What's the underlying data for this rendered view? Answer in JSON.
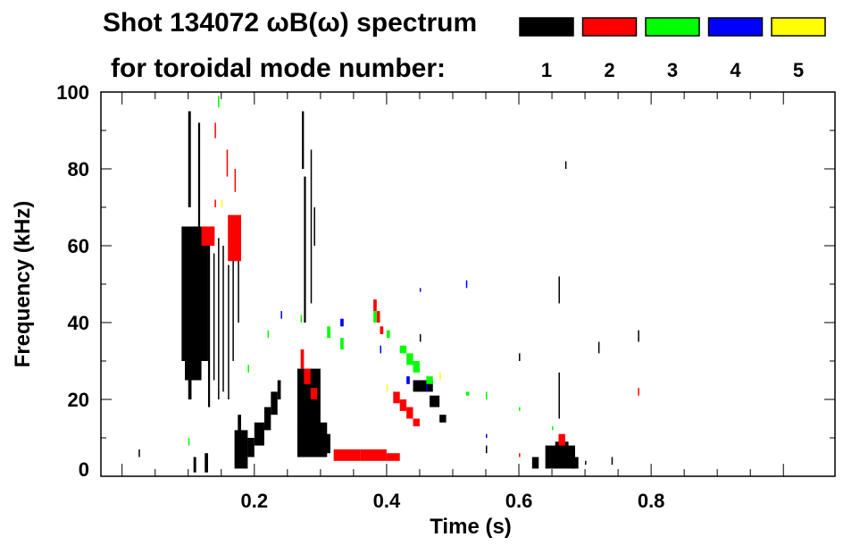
{
  "chart_data": {
    "type": "heatmap",
    "title": "Shot 134072 ωB(ω) spectrum",
    "subtitle": "for toroidal mode number:",
    "xlabel": "Time (s)",
    "ylabel": "Frequency (kHz)",
    "xlim": [
      -0.032,
      1.078
    ],
    "ylim": [
      0,
      100
    ],
    "xticks": [
      "0.2",
      "0.4",
      "0.6",
      "0.8"
    ],
    "xtick_values": [
      0.2,
      0.4,
      0.6,
      0.8
    ],
    "yticks": [
      "0",
      "20",
      "40",
      "60",
      "80",
      "100"
    ],
    "ytick_values": [
      0,
      20,
      40,
      60,
      80,
      100
    ],
    "legend": [
      {
        "label": "1",
        "color": "#000000"
      },
      {
        "label": "2",
        "color": "#ff0000"
      },
      {
        "label": "3",
        "color": "#00ff00"
      },
      {
        "label": "4",
        "color": "#0000ff"
      },
      {
        "label": "5",
        "color": "#ffff00"
      }
    ],
    "series": [
      {
        "mode": "1",
        "color": "#000000",
        "marks": [
          [
            0.09,
            30,
            0.13,
            65
          ],
          [
            0.095,
            25,
            0.12,
            45
          ],
          [
            0.1,
            20,
            0.105,
            40
          ],
          [
            0.1,
            70,
            0.104,
            95
          ],
          [
            0.115,
            60,
            0.118,
            92
          ],
          [
            0.13,
            18,
            0.133,
            60
          ],
          [
            0.138,
            25,
            0.14,
            58
          ],
          [
            0.145,
            20,
            0.147,
            62
          ],
          [
            0.152,
            22,
            0.154,
            60
          ],
          [
            0.16,
            20,
            0.162,
            55
          ],
          [
            0.167,
            30,
            0.169,
            58
          ],
          [
            0.175,
            40,
            0.177,
            62
          ],
          [
            0.108,
            1,
            0.112,
            5
          ],
          [
            0.125,
            1,
            0.13,
            6
          ],
          [
            0.17,
            2,
            0.19,
            12
          ],
          [
            0.175,
            8,
            0.18,
            16
          ],
          [
            0.19,
            5,
            0.2,
            10
          ],
          [
            0.2,
            8,
            0.215,
            14
          ],
          [
            0.215,
            12,
            0.225,
            18
          ],
          [
            0.225,
            16,
            0.235,
            22
          ],
          [
            0.235,
            20,
            0.24,
            25
          ],
          [
            0.265,
            12,
            0.3,
            28
          ],
          [
            0.265,
            5,
            0.31,
            14
          ],
          [
            0.29,
            6,
            0.315,
            11
          ],
          [
            0.272,
            80,
            0.275,
            95
          ],
          [
            0.275,
            40,
            0.278,
            78
          ],
          [
            0.285,
            45,
            0.287,
            85
          ],
          [
            0.29,
            60,
            0.292,
            70
          ],
          [
            0.62,
            2,
            0.63,
            5
          ],
          [
            0.64,
            2,
            0.685,
            8
          ],
          [
            0.655,
            4,
            0.675,
            9
          ],
          [
            0.68,
            2,
            0.69,
            5
          ],
          [
            0.66,
            45,
            0.662,
            52
          ],
          [
            0.66,
            15,
            0.662,
            27
          ],
          [
            0.44,
            22,
            0.47,
            25
          ],
          [
            0.465,
            18,
            0.48,
            21
          ],
          [
            0.48,
            14,
            0.49,
            16
          ],
          [
            0.55,
            6,
            0.552,
            8
          ],
          [
            0.74,
            3,
            0.742,
            5
          ],
          [
            0.7,
            3,
            0.702,
            4
          ],
          [
            0.025,
            5,
            0.027,
            7
          ],
          [
            0.67,
            80,
            0.672,
            82
          ],
          [
            0.72,
            32,
            0.722,
            35
          ],
          [
            0.78,
            35,
            0.782,
            38
          ],
          [
            0.6,
            30,
            0.602,
            32
          ],
          [
            0.45,
            35,
            0.452,
            37
          ]
        ]
      },
      {
        "mode": "2",
        "color": "#ff0000",
        "marks": [
          [
            0.12,
            60,
            0.14,
            65
          ],
          [
            0.16,
            56,
            0.18,
            68
          ],
          [
            0.158,
            78,
            0.16,
            85
          ],
          [
            0.14,
            88,
            0.142,
            92
          ],
          [
            0.17,
            74,
            0.172,
            80
          ],
          [
            0.27,
            28,
            0.275,
            33
          ],
          [
            0.275,
            24,
            0.285,
            28
          ],
          [
            0.285,
            20,
            0.295,
            23
          ],
          [
            0.32,
            4,
            0.36,
            7
          ],
          [
            0.36,
            4,
            0.4,
            7
          ],
          [
            0.4,
            4,
            0.42,
            6
          ],
          [
            0.38,
            43,
            0.385,
            46
          ],
          [
            0.385,
            40,
            0.39,
            43
          ],
          [
            0.39,
            37,
            0.395,
            39
          ],
          [
            0.41,
            19,
            0.42,
            22
          ],
          [
            0.42,
            17,
            0.43,
            20
          ],
          [
            0.43,
            15,
            0.44,
            18
          ],
          [
            0.44,
            13,
            0.45,
            15
          ],
          [
            0.66,
            8,
            0.67,
            11
          ],
          [
            0.14,
            70,
            0.142,
            72
          ],
          [
            0.6,
            5,
            0.602,
            6
          ],
          [
            0.78,
            21,
            0.782,
            23
          ]
        ]
      },
      {
        "mode": "3",
        "color": "#00ff00",
        "marks": [
          [
            0.145,
            96,
            0.147,
            99
          ],
          [
            0.19,
            27,
            0.192,
            29
          ],
          [
            0.22,
            36,
            0.222,
            38
          ],
          [
            0.31,
            36,
            0.315,
            39
          ],
          [
            0.33,
            33,
            0.335,
            36
          ],
          [
            0.38,
            40,
            0.385,
            43
          ],
          [
            0.4,
            36,
            0.405,
            38
          ],
          [
            0.42,
            32,
            0.43,
            34
          ],
          [
            0.43,
            29,
            0.44,
            32
          ],
          [
            0.44,
            27,
            0.45,
            30
          ],
          [
            0.46,
            24,
            0.47,
            26
          ],
          [
            0.52,
            21,
            0.525,
            22
          ],
          [
            0.55,
            20,
            0.552,
            22
          ],
          [
            0.6,
            17,
            0.602,
            18
          ],
          [
            0.65,
            12,
            0.652,
            13
          ],
          [
            0.1,
            8,
            0.102,
            10
          ],
          [
            0.27,
            40,
            0.272,
            42
          ]
        ]
      },
      {
        "mode": "4",
        "color": "#0000ff",
        "marks": [
          [
            0.24,
            41,
            0.242,
            43
          ],
          [
            0.33,
            39,
            0.335,
            41
          ],
          [
            0.39,
            32,
            0.392,
            34
          ],
          [
            0.43,
            24,
            0.435,
            26
          ],
          [
            0.46,
            22,
            0.462,
            24
          ],
          [
            0.52,
            49,
            0.522,
            51
          ],
          [
            0.55,
            10,
            0.552,
            11
          ],
          [
            0.45,
            48,
            0.452,
            49
          ]
        ]
      },
      {
        "mode": "5",
        "color": "#ffff00",
        "marks": [
          [
            0.15,
            70,
            0.152,
            72
          ],
          [
            0.4,
            22,
            0.402,
            24
          ],
          [
            0.48,
            25,
            0.482,
            27
          ]
        ]
      }
    ]
  }
}
